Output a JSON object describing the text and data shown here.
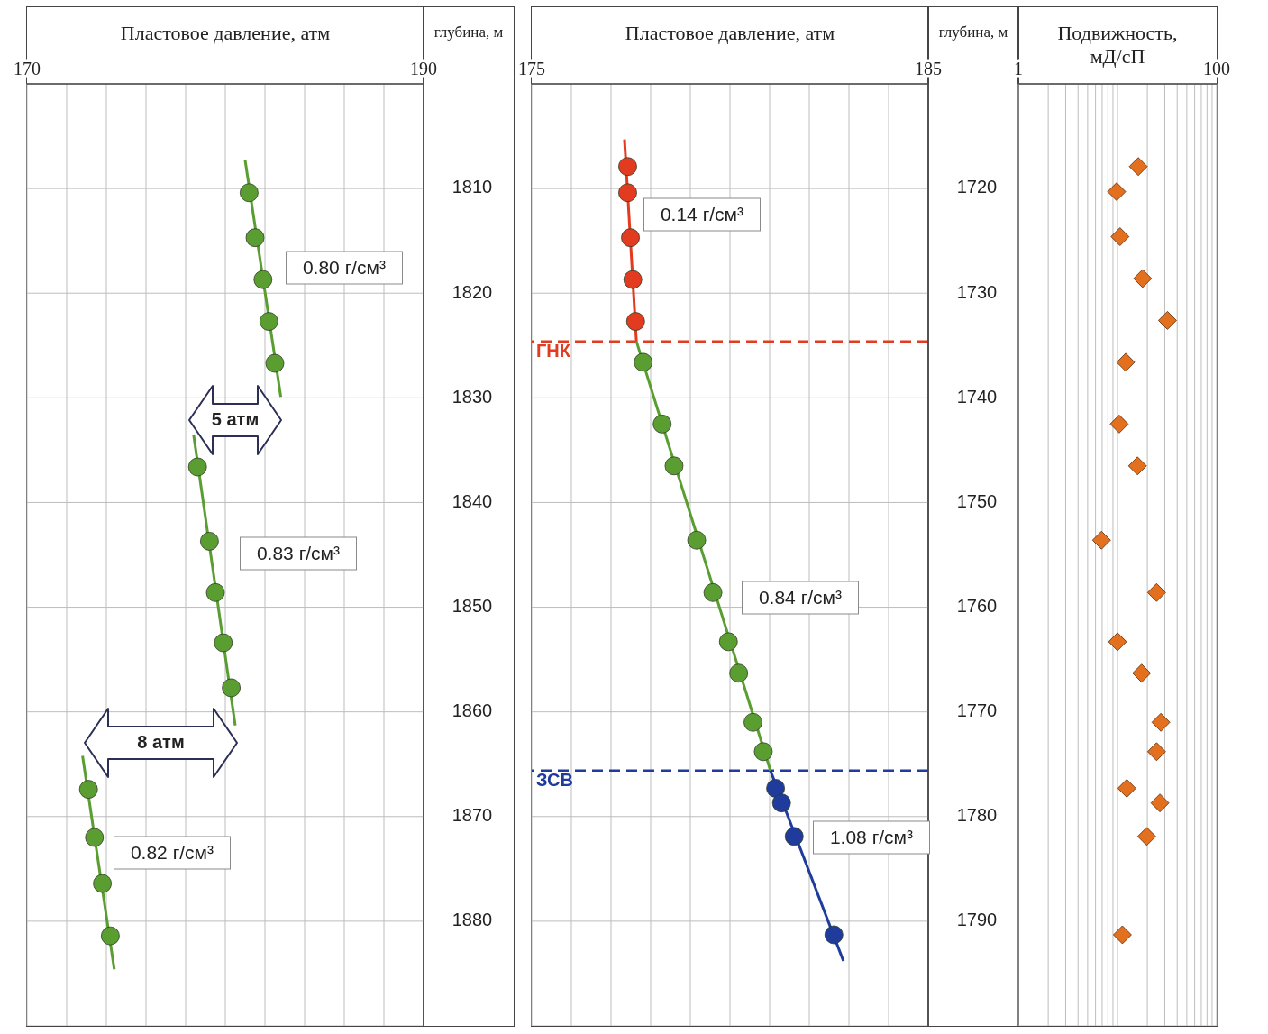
{
  "chart_data": [
    {
      "type": "scatter",
      "xlabel": "Пластовое давление, атм",
      "ylabel": "глубина, м",
      "xlim": [
        170,
        190
      ],
      "xticks": [
        170,
        {
          "value": 172,
          "label": null
        },
        {
          "value": 174,
          "label": null
        },
        {
          "value": 176,
          "label": null
        },
        {
          "value": 178,
          "label": null
        },
        {
          "value": 180,
          "label": null
        },
        {
          "value": 182,
          "label": null
        },
        {
          "value": 184,
          "label": null
        },
        {
          "value": 186,
          "label": null
        },
        {
          "value": 188,
          "label": null
        },
        190
      ],
      "ylim": [
        1890,
        1800
      ],
      "yticks": [
        1810,
        1820,
        1830,
        1840,
        1850,
        1860,
        1870,
        1880
      ],
      "grid": true,
      "series": [
        {
          "type": "line",
          "color": "#5a9e32",
          "marker": "none",
          "x": [
            181.0,
            182.8
          ],
          "values": [
            1807.3,
            1829.9
          ]
        },
        {
          "type": "line",
          "color": "#5a9e32",
          "marker": "none",
          "x": [
            178.4,
            180.5
          ],
          "values": [
            1833.5,
            1861.3
          ]
        },
        {
          "type": "line",
          "color": "#5a9e32",
          "marker": "none",
          "x": [
            172.8,
            174.4
          ],
          "values": [
            1864.2,
            1884.6
          ]
        },
        {
          "type": "scatter",
          "color": "#5a9e32",
          "marker": "circle",
          "x": [
            181.2,
            181.5,
            181.9,
            182.2,
            182.5,
            178.6,
            179.2,
            179.5,
            179.9,
            180.3,
            173.1,
            173.4,
            173.8,
            174.2
          ],
          "values": [
            1810.4,
            1814.7,
            1818.7,
            1822.7,
            1826.7,
            1836.6,
            1843.7,
            1848.6,
            1853.4,
            1857.7,
            1867.4,
            1872.0,
            1876.4,
            1881.4
          ]
        }
      ],
      "annotations": [
        "0.80 г/см³",
        "0.83 г/см³",
        "0.82 г/см³",
        "5 атм",
        "8 атм"
      ]
    },
    {
      "type": "scatter",
      "xlabel": "Пластовое давление, атм",
      "ylabel": "глубина, м",
      "xlim": [
        175,
        185
      ],
      "xticks": [
        175,
        {
          "value": 176,
          "label": null
        },
        {
          "value": 177,
          "label": null
        },
        {
          "value": 178,
          "label": null
        },
        {
          "value": 179,
          "label": null
        },
        {
          "value": 180,
          "label": null
        },
        {
          "value": 181,
          "label": null
        },
        {
          "value": 182,
          "label": null
        },
        {
          "value": 183,
          "label": null
        },
        {
          "value": 184,
          "label": null
        },
        185
      ],
      "ylim": [
        1800,
        1710
      ],
      "yticks": [
        1720,
        1730,
        1740,
        1750,
        1760,
        1770,
        1780,
        1790
      ],
      "grid": true,
      "series": [
        {
          "type": "line",
          "color": "#e23b1f",
          "marker": "none",
          "x": [
            177.34,
            177.64
          ],
          "values": [
            1715.3,
            1734.6
          ]
        },
        {
          "type": "line",
          "color": "#5a9e32",
          "marker": "none",
          "x": [
            177.64,
            181.02
          ],
          "values": [
            1734.6,
            1775.6
          ]
        },
        {
          "type": "line",
          "color": "#1f3c9c",
          "marker": "none",
          "x": [
            181.02,
            182.86
          ],
          "values": [
            1775.6,
            1793.8
          ]
        },
        {
          "type": "scatter",
          "color": "#e23b1f",
          "marker": "circle",
          "x": [
            177.42,
            177.42,
            177.49,
            177.55,
            177.62
          ],
          "values": [
            1717.9,
            1720.4,
            1724.7,
            1728.7,
            1732.7
          ]
        },
        {
          "type": "scatter",
          "color": "#5a9e32",
          "marker": "circle",
          "x": [
            177.81,
            178.29,
            178.59,
            179.16,
            179.57,
            179.96,
            180.22,
            180.58,
            180.84
          ],
          "values": [
            1736.6,
            1742.5,
            1746.5,
            1753.6,
            1758.6,
            1763.3,
            1766.3,
            1771.0,
            1773.8
          ]
        },
        {
          "type": "scatter",
          "color": "#1f3c9c",
          "marker": "circle",
          "x": [
            181.15,
            181.3,
            181.62,
            182.62
          ],
          "values": [
            1777.3,
            1778.7,
            1781.9,
            1791.3
          ]
        }
      ],
      "ref_lines": [
        {
          "axis": "y",
          "value": 1734.6,
          "label": "ГНК",
          "color": "#e23b1f",
          "line_style": "dashed"
        },
        {
          "axis": "y",
          "value": 1775.6,
          "label": "ЗСВ",
          "color": "#1f3c9c",
          "line_style": "dashed"
        }
      ],
      "annotations": [
        "0.14 г/см³",
        "0.84 г/см³",
        "1.08 г/см³"
      ]
    },
    {
      "type": "scatter",
      "xlabel": "Подвижность, мД/сП",
      "log": "x",
      "xlim": [
        1,
        100
      ],
      "xticks": [
        1,
        {
          "value": 2,
          "label": null
        },
        {
          "value": 3,
          "label": null
        },
        {
          "value": 4,
          "label": null
        },
        {
          "value": 5,
          "label": null
        },
        {
          "value": 6,
          "label": null
        },
        {
          "value": 7,
          "label": null
        },
        {
          "value": 8,
          "label": null
        },
        {
          "value": 9,
          "label": null
        },
        {
          "value": 10,
          "label": null
        },
        {
          "value": 20,
          "label": null
        },
        {
          "value": 30,
          "label": null
        },
        {
          "value": 40,
          "label": null
        },
        {
          "value": 50,
          "label": null
        },
        {
          "value": 60,
          "label": null
        },
        {
          "value": 70,
          "label": null
        },
        {
          "value": 80,
          "label": null
        },
        {
          "value": 90,
          "label": null
        },
        100
      ],
      "ylim": [
        1800,
        1710
      ],
      "yticks": [
        1720,
        1730,
        1740,
        1750,
        1760,
        1770,
        1780,
        1790
      ],
      "tick_labels": "x",
      "grid": true,
      "series": [
        {
          "type": "scatter",
          "color": "#e2701e",
          "marker": "diamond",
          "x": [
            16.2,
            9.8,
            10.6,
            17.9,
            31.9,
            12.1,
            10.4,
            15.9,
            6.9,
            24.8,
            10.0,
            17.5,
            27.4,
            24.8,
            12.4,
            26.8,
            19.7,
            11.2
          ],
          "values": [
            1717.9,
            1720.3,
            1724.6,
            1728.6,
            1732.6,
            1736.6,
            1742.5,
            1746.5,
            1753.6,
            1758.6,
            1763.3,
            1766.3,
            1771.0,
            1773.8,
            1777.3,
            1778.7,
            1781.9,
            1791.3
          ]
        }
      ]
    }
  ]
}
